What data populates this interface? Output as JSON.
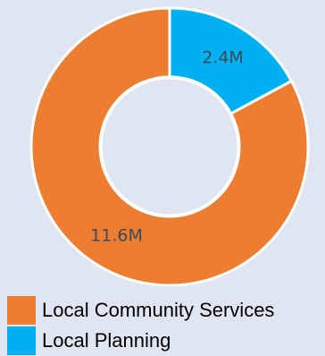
{
  "chart_data": {
    "type": "pie",
    "variant": "donut",
    "categories": [
      "Local Community Services",
      "Local Planning"
    ],
    "values": [
      11.6,
      2.4
    ],
    "value_labels": [
      "11.6M",
      "2.4M"
    ],
    "colors": [
      "#ed7d31",
      "#00b0f0"
    ],
    "title": "",
    "legend_position": "bottom-left"
  }
}
